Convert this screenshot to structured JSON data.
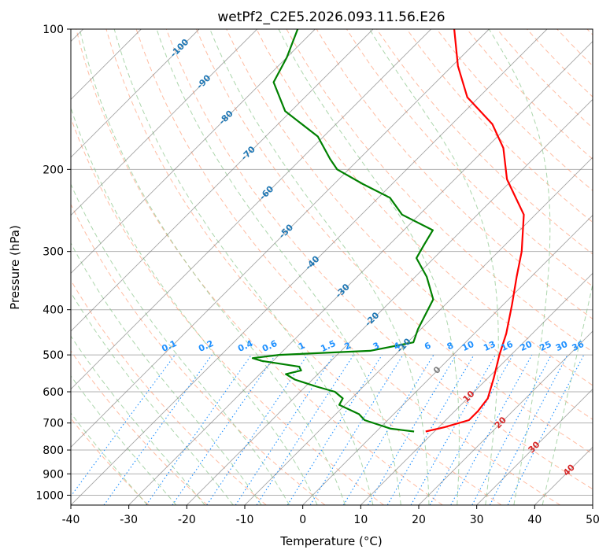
{
  "chart_data": {
    "type": "line",
    "title": "wetPf2_C2E5.2026.093.11.56.E26",
    "xlabel": "Temperature (°C)",
    "ylabel": "Pressure (hPa)",
    "xlim": [
      -40,
      50
    ],
    "ylim": [
      1050,
      100
    ],
    "y_scale": "log",
    "grid": true,
    "x_ticks": [
      "-40",
      "-30",
      "-20",
      "-10",
      "0",
      "10",
      "20",
      "30",
      "40",
      "50"
    ],
    "y_ticks": [
      "100",
      "200",
      "300",
      "400",
      "500",
      "600",
      "700",
      "800",
      "900",
      "1000"
    ],
    "temperature_profile": [
      {
        "p": 730,
        "t": 8.5
      },
      {
        "p": 715,
        "t": 11.0
      },
      {
        "p": 690,
        "t": 14.0
      },
      {
        "p": 660,
        "t": 14.0
      },
      {
        "p": 620,
        "t": 13.5
      },
      {
        "p": 560,
        "t": 11.0
      },
      {
        "p": 500,
        "t": 8.0
      },
      {
        "p": 450,
        "t": 5.5
      },
      {
        "p": 390,
        "t": 1.5
      },
      {
        "p": 340,
        "t": -2.5
      },
      {
        "p": 300,
        "t": -6.0
      },
      {
        "p": 250,
        "t": -12.0
      },
      {
        "p": 210,
        "t": -21.0
      },
      {
        "p": 180,
        "t": -27.0
      },
      {
        "p": 160,
        "t": -33.0
      },
      {
        "p": 140,
        "t": -42.0
      },
      {
        "p": 120,
        "t": -49.0
      },
      {
        "p": 100,
        "t": -56.0
      }
    ],
    "dewpoint_profile": [
      {
        "p": 730,
        "t": 6.5
      },
      {
        "p": 720,
        "t": 2.0
      },
      {
        "p": 690,
        "t": -4.0
      },
      {
        "p": 670,
        "t": -6.0
      },
      {
        "p": 640,
        "t": -11.0
      },
      {
        "p": 620,
        "t": -11.5
      },
      {
        "p": 600,
        "t": -14.0
      },
      {
        "p": 585,
        "t": -18.0
      },
      {
        "p": 565,
        "t": -23.0
      },
      {
        "p": 550,
        "t": -25.5
      },
      {
        "p": 540,
        "t": -23.5
      },
      {
        "p": 530,
        "t": -24.5
      },
      {
        "p": 515,
        "t": -32.0
      },
      {
        "p": 508,
        "t": -34.0
      },
      {
        "p": 500,
        "t": -30.0
      },
      {
        "p": 490,
        "t": -15.0
      },
      {
        "p": 470,
        "t": -9.0
      },
      {
        "p": 440,
        "t": -10.5
      },
      {
        "p": 380,
        "t": -13.0
      },
      {
        "p": 340,
        "t": -18.0
      },
      {
        "p": 310,
        "t": -23.0
      },
      {
        "p": 290,
        "t": -24.0
      },
      {
        "p": 270,
        "t": -25.0
      },
      {
        "p": 250,
        "t": -33.0
      },
      {
        "p": 230,
        "t": -38.0
      },
      {
        "p": 215,
        "t": -45.0
      },
      {
        "p": 200,
        "t": -52.0
      },
      {
        "p": 190,
        "t": -55.0
      },
      {
        "p": 170,
        "t": -61.0
      },
      {
        "p": 150,
        "t": -71.0
      },
      {
        "p": 130,
        "t": -78.0
      },
      {
        "p": 115,
        "t": -80.0
      },
      {
        "p": 100,
        "t": -83.0
      }
    ],
    "series": [
      {
        "name": "",
        "color": "#ff0000"
      },
      {
        "name": "",
        "color": "#008000"
      }
    ],
    "isotherm_labels_left": [
      {
        "text": "-100",
        "t": -100,
        "p": 110
      },
      {
        "text": "-90",
        "t": -90,
        "p": 130
      },
      {
        "text": "-80",
        "t": -80,
        "p": 155
      },
      {
        "text": "-70",
        "t": -70,
        "p": 185
      },
      {
        "text": "-60",
        "t": -60,
        "p": 225
      },
      {
        "text": "-50",
        "t": -50,
        "p": 272
      },
      {
        "text": "-40",
        "t": -40,
        "p": 318
      },
      {
        "text": "-30",
        "t": -30,
        "p": 365
      },
      {
        "text": "-20",
        "t": -20,
        "p": 420
      },
      {
        "text": "-10",
        "t": -10,
        "p": 478
      }
    ],
    "isotherm_labels_right": [
      {
        "text": "0",
        "t": 0,
        "p": 540
      },
      {
        "text": "10",
        "t": 10,
        "p": 615
      },
      {
        "text": "20",
        "t": 20,
        "p": 700
      },
      {
        "text": "30",
        "t": 30,
        "p": 790
      },
      {
        "text": "40",
        "t": 40,
        "p": 885
      }
    ],
    "mixing_ratio_labels": [
      "0.1",
      "0.2",
      "0.4",
      "0.6",
      "1",
      "1.5",
      "2",
      "3",
      "4",
      "6",
      "8",
      "10",
      "13",
      "16",
      "20",
      "25",
      "30",
      "36"
    ],
    "mixing_ratio_values": [
      0.1,
      0.2,
      0.4,
      0.6,
      1,
      1.5,
      2,
      3,
      4,
      6,
      8,
      10,
      13,
      16,
      20,
      25,
      30,
      36
    ],
    "colors": {
      "temperature": "#ff0000",
      "dewpoint": "#008000",
      "isotherm": "#7f7f7f",
      "isotherm_label": "#1f77b4",
      "isotherm_label_warm": "#d62728",
      "isotherm_label_zero": "#7f7f7f",
      "dry_adiabat": "#ffa07a",
      "moist_adiabat": "#90c890",
      "mixing_ratio": "#1e90ff",
      "mixing_label": "#1e90ff",
      "grid": "#b0b0b0"
    }
  }
}
